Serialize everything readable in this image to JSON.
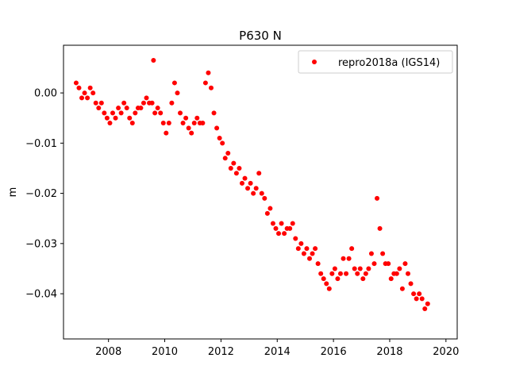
{
  "chart_data": {
    "type": "scatter",
    "title": "P630 N",
    "xlabel": "",
    "ylabel": "m",
    "xlim": [
      2006.4,
      2020.4
    ],
    "ylim": [
      -0.049,
      0.0095
    ],
    "xticks": [
      2008,
      2010,
      2012,
      2014,
      2016,
      2018,
      2020
    ],
    "xtick_labels": [
      "2008",
      "2010",
      "2012",
      "2014",
      "2016",
      "2018",
      "2020"
    ],
    "yticks": [
      0.0,
      -0.01,
      -0.02,
      -0.03,
      -0.04
    ],
    "ytick_labels": [
      "0.00",
      "−0.01",
      "−0.02",
      "−0.03",
      "−0.04"
    ],
    "grid": false,
    "legend_position": "top-right",
    "series": [
      {
        "name": "repro2018a (IGS14)",
        "color": "#ff0000",
        "marker": "circle",
        "x": [
          2006.85,
          2006.95,
          2007.05,
          2007.15,
          2007.25,
          2007.35,
          2007.45,
          2007.55,
          2007.65,
          2007.75,
          2007.85,
          2007.95,
          2008.05,
          2008.15,
          2008.25,
          2008.35,
          2008.45,
          2008.55,
          2008.65,
          2008.75,
          2008.85,
          2008.95,
          2009.05,
          2009.15,
          2009.25,
          2009.35,
          2009.45,
          2009.55,
          2009.6,
          2009.65,
          2009.75,
          2009.85,
          2009.95,
          2010.05,
          2010.15,
          2010.25,
          2010.35,
          2010.45,
          2010.55,
          2010.65,
          2010.75,
          2010.85,
          2010.95,
          2011.05,
          2011.15,
          2011.25,
          2011.35,
          2011.45,
          2011.55,
          2011.65,
          2011.75,
          2011.85,
          2011.95,
          2012.05,
          2012.15,
          2012.25,
          2012.35,
          2012.45,
          2012.55,
          2012.65,
          2012.75,
          2012.85,
          2012.95,
          2013.05,
          2013.15,
          2013.25,
          2013.35,
          2013.45,
          2013.55,
          2013.65,
          2013.75,
          2013.85,
          2013.95,
          2014.05,
          2014.15,
          2014.25,
          2014.35,
          2014.45,
          2014.55,
          2014.65,
          2014.75,
          2014.85,
          2014.95,
          2015.05,
          2015.15,
          2015.25,
          2015.35,
          2015.45,
          2015.55,
          2015.65,
          2015.75,
          2015.85,
          2015.95,
          2016.05,
          2016.15,
          2016.25,
          2016.35,
          2016.45,
          2016.55,
          2016.65,
          2016.75,
          2016.85,
          2016.95,
          2017.05,
          2017.15,
          2017.25,
          2017.35,
          2017.45,
          2017.55,
          2017.65,
          2017.75,
          2017.85,
          2017.95,
          2018.05,
          2018.15,
          2018.25,
          2018.35,
          2018.45,
          2018.55,
          2018.65,
          2018.75,
          2018.85,
          2018.95,
          2019.05,
          2019.15,
          2019.25,
          2019.35
        ],
        "y": [
          0.002,
          0.001,
          -0.001,
          0.0,
          -0.001,
          0.001,
          0.0,
          -0.002,
          -0.003,
          -0.002,
          -0.004,
          -0.005,
          -0.006,
          -0.004,
          -0.005,
          -0.003,
          -0.004,
          -0.002,
          -0.003,
          -0.005,
          -0.006,
          -0.004,
          -0.003,
          -0.003,
          -0.002,
          -0.001,
          -0.002,
          -0.002,
          0.0065,
          -0.004,
          -0.003,
          -0.004,
          -0.006,
          -0.008,
          -0.006,
          -0.002,
          0.002,
          0.0,
          -0.004,
          -0.006,
          -0.005,
          -0.007,
          -0.008,
          -0.006,
          -0.005,
          -0.006,
          -0.006,
          0.002,
          0.004,
          0.001,
          -0.004,
          -0.007,
          -0.009,
          -0.01,
          -0.013,
          -0.012,
          -0.015,
          -0.014,
          -0.016,
          -0.015,
          -0.018,
          -0.017,
          -0.019,
          -0.018,
          -0.02,
          -0.019,
          -0.016,
          -0.02,
          -0.021,
          -0.024,
          -0.023,
          -0.026,
          -0.027,
          -0.028,
          -0.026,
          -0.028,
          -0.027,
          -0.027,
          -0.026,
          -0.029,
          -0.031,
          -0.03,
          -0.032,
          -0.031,
          -0.033,
          -0.032,
          -0.031,
          -0.034,
          -0.036,
          -0.037,
          -0.038,
          -0.039,
          -0.036,
          -0.035,
          -0.037,
          -0.036,
          -0.033,
          -0.036,
          -0.033,
          -0.031,
          -0.035,
          -0.036,
          -0.035,
          -0.037,
          -0.036,
          -0.035,
          -0.032,
          -0.034,
          -0.021,
          -0.027,
          -0.032,
          -0.034,
          -0.034,
          -0.037,
          -0.036,
          -0.036,
          -0.035,
          -0.039,
          -0.034,
          -0.036,
          -0.038,
          -0.04,
          -0.041,
          -0.04,
          -0.041,
          -0.043,
          -0.042
        ]
      }
    ]
  }
}
